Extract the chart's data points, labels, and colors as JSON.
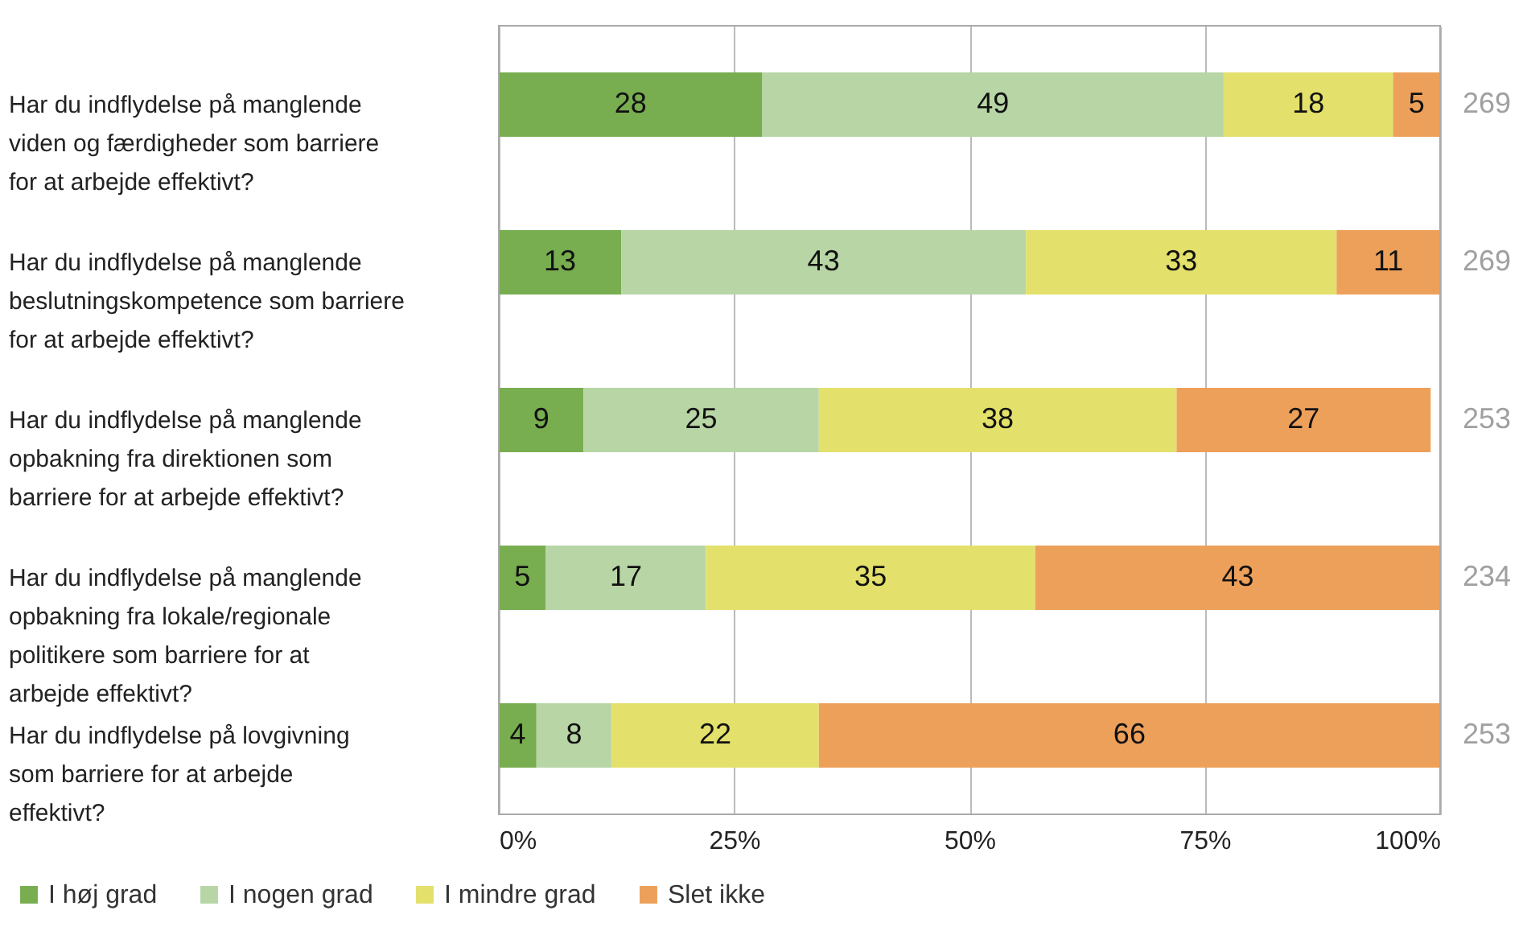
{
  "chart_data": {
    "type": "bar",
    "orientation": "horizontal",
    "stacked": true,
    "categories": [
      "Har du indflydelse på manglende viden og færdigheder som barriere for at arbejde effektivt?",
      "Har du indflydelse på manglende beslutningskompetence  som barriere for at arbejde effektivt?",
      "Har du indflydelse på manglende opbakning fra direktionen som barriere for at arbejde effektivt?",
      "Har du indflydelse på manglende opbakning fra lokale/regionale politikere som barriere for at arbejde effektivt?",
      "Har du indflydelse på lovgivning som barriere for at arbejde effektivt?"
    ],
    "series": [
      {
        "name": "I høj grad",
        "color": "#78ad50",
        "values": [
          28,
          13,
          9,
          5,
          4
        ]
      },
      {
        "name": "I nogen grad",
        "color": "#b8d5a5",
        "values": [
          49,
          43,
          25,
          17,
          8
        ]
      },
      {
        "name": "I mindre grad",
        "color": "#e3e06b",
        "values": [
          18,
          33,
          38,
          35,
          22
        ]
      },
      {
        "name": "Slet ikke",
        "color": "#eda05a",
        "values": [
          5,
          11,
          27,
          43,
          66
        ]
      }
    ],
    "data_labels": true,
    "xlim": [
      0,
      100
    ],
    "xticks": [
      {
        "value": 0,
        "label": "0%"
      },
      {
        "value": 25,
        "label": "25%"
      },
      {
        "value": 50,
        "label": "50%"
      },
      {
        "value": 75,
        "label": "75%"
      },
      {
        "value": 100,
        "label": "100%"
      }
    ],
    "grid": "x",
    "legend": "bottom",
    "annotations": [
      "269",
      "269",
      "253",
      "234",
      "253"
    ]
  }
}
